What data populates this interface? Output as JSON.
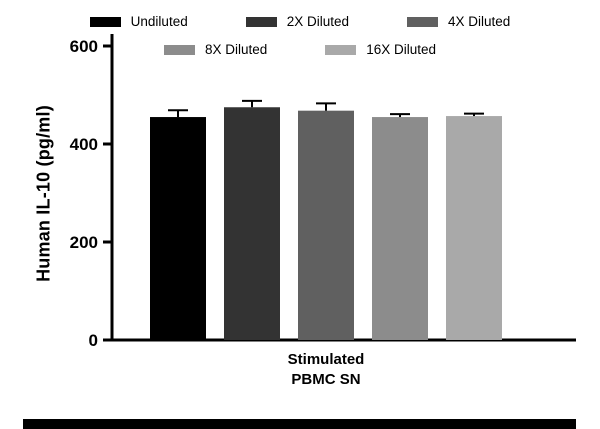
{
  "chart_data": {
    "type": "bar",
    "title": "",
    "ylabel": "Human IL-10 (pg/ml)",
    "xlabel_lines": [
      "Stimulated",
      "PBMC SN"
    ],
    "xlabel": "Stimulated PBMC SN",
    "ylim": [
      0,
      600
    ],
    "yticks": [
      0,
      200,
      400,
      600
    ],
    "grid": false,
    "legend_position": "top",
    "legend_rows": [
      [
        "Undiluted",
        "2X Diluted",
        "4X Diluted"
      ],
      [
        "8X Diluted",
        "16X Diluted"
      ]
    ],
    "categories": [
      "Stimulated PBMC SN"
    ],
    "series": [
      {
        "name": "Undiluted",
        "value": 455,
        "error": 14,
        "color": "#000000"
      },
      {
        "name": "2X Diluted",
        "value": 475,
        "error": 13,
        "color": "#333333"
      },
      {
        "name": "4X Diluted",
        "value": 468,
        "error": 15,
        "color": "#606060"
      },
      {
        "name": "8X Diluted",
        "value": 455,
        "error": 6,
        "color": "#8c8c8c"
      },
      {
        "name": "16X Diluted",
        "value": 457,
        "error": 5,
        "color": "#a9a9a9"
      }
    ]
  }
}
